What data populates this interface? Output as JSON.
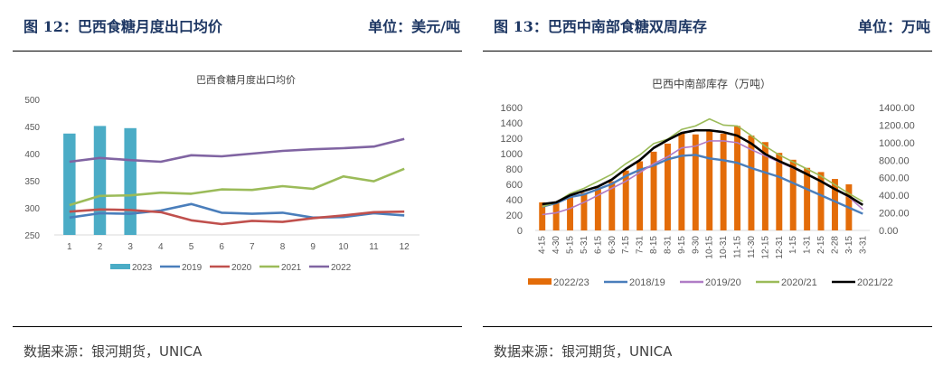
{
  "left": {
    "figure_title": "图 12：巴西食糖月度出口均价",
    "unit": "单位：美元/吨",
    "source": "数据来源：银河期货，UNICA"
  },
  "right": {
    "figure_title": "图 13：巴西中南部食糖双周库存",
    "unit": "单位：万吨",
    "source": "数据来源：银河期货，UNICA"
  },
  "chart_data": [
    {
      "type": "bar+line",
      "title": "巴西食糖月度出口均价",
      "xlabel": "",
      "ylabel": "",
      "ylim": [
        250,
        500
      ],
      "yticks": [
        "250",
        "300",
        "350",
        "400",
        "450",
        "500"
      ],
      "categories": [
        "1",
        "2",
        "3",
        "4",
        "5",
        "6",
        "7",
        "8",
        "9",
        "10",
        "11",
        "12"
      ],
      "legend_position": "bottom",
      "grid": false,
      "series": [
        {
          "name": "2023",
          "kind": "bar",
          "color": "#4bacc6",
          "values": [
            437,
            451,
            447,
            null,
            null,
            null,
            null,
            null,
            null,
            null,
            null,
            null
          ]
        },
        {
          "name": "2019",
          "kind": "line",
          "color": "#4a7ebb",
          "values": [
            282,
            290,
            289,
            295,
            307,
            291,
            289,
            291,
            282,
            283,
            290,
            286
          ]
        },
        {
          "name": "2020",
          "kind": "line",
          "color": "#c0504d",
          "values": [
            293,
            297,
            296,
            292,
            277,
            270,
            276,
            274,
            281,
            286,
            292,
            293
          ]
        },
        {
          "name": "2021",
          "kind": "line",
          "color": "#9bbb59",
          "values": [
            305,
            322,
            323,
            328,
            326,
            334,
            333,
            340,
            335,
            358,
            349,
            372
          ]
        },
        {
          "name": "2022",
          "kind": "line",
          "color": "#8064a2",
          "values": [
            385,
            392,
            388,
            385,
            397,
            395,
            400,
            405,
            408,
            410,
            413,
            427
          ]
        }
      ]
    },
    {
      "type": "bar+line",
      "title": "巴西中南部库存（万吨）",
      "xlabel": "",
      "ylabel": "",
      "ylim": [
        0,
        1600
      ],
      "yticks": [
        "0",
        "200",
        "400",
        "600",
        "800",
        "1000",
        "1200",
        "1400",
        "1600"
      ],
      "y2lim": [
        0,
        1400
      ],
      "y2ticks": [
        "0.00",
        "200.00",
        "400.00",
        "600.00",
        "800.00",
        "1000.00",
        "1200.00",
        "1400.00"
      ],
      "categories": [
        "4-15",
        "4-30",
        "5-15",
        "5-31",
        "6-15",
        "6-30",
        "7-15",
        "7-31",
        "8-15",
        "8-31",
        "9-15",
        "9-30",
        "10-15",
        "10-31",
        "11-15",
        "11-30",
        "12-15",
        "12-31",
        "1-15",
        "1-31",
        "2-15",
        "2-28",
        "3-15",
        "3-31"
      ],
      "legend_position": "bottom",
      "grid": false,
      "series": [
        {
          "name": "2022/23",
          "kind": "bar",
          "axis": "left",
          "color": "#e36c09",
          "values": [
            365,
            360,
            430,
            490,
            560,
            640,
            780,
            900,
            1025,
            1130,
            1270,
            1250,
            1300,
            1260,
            1360,
            1235,
            1150,
            1010,
            920,
            815,
            760,
            670,
            600,
            null
          ]
        },
        {
          "name": "2018/19",
          "kind": "line",
          "axis": "right",
          "color": "#4a7ebb",
          "values": [
            270,
            310,
            380,
            410,
            470,
            530,
            620,
            690,
            740,
            810,
            850,
            860,
            820,
            800,
            770,
            710,
            660,
            610,
            540,
            470,
            400,
            330,
            260,
            190
          ]
        },
        {
          "name": "2019/20",
          "kind": "line",
          "axis": "right",
          "color": "#b07cc6",
          "values": [
            180,
            200,
            250,
            320,
            400,
            480,
            560,
            660,
            760,
            840,
            940,
            960,
            1020,
            1020,
            1000,
            920,
            850,
            780,
            710,
            640,
            560,
            470,
            380,
            240
          ]
        },
        {
          "name": "2020/21",
          "kind": "line",
          "axis": "right",
          "color": "#9bbb59",
          "values": [
            270,
            320,
            420,
            480,
            560,
            640,
            760,
            860,
            990,
            1040,
            1150,
            1190,
            1270,
            1200,
            1190,
            1080,
            960,
            860,
            780,
            700,
            620,
            520,
            420,
            330
          ]
        },
        {
          "name": "2021/22",
          "kind": "line",
          "axis": "right",
          "color": "#000000",
          "values": [
            300,
            320,
            400,
            450,
            500,
            580,
            700,
            800,
            940,
            1030,
            1110,
            1140,
            1140,
            1120,
            1080,
            990,
            870,
            790,
            720,
            640,
            560,
            470,
            390,
            290
          ]
        }
      ]
    }
  ]
}
